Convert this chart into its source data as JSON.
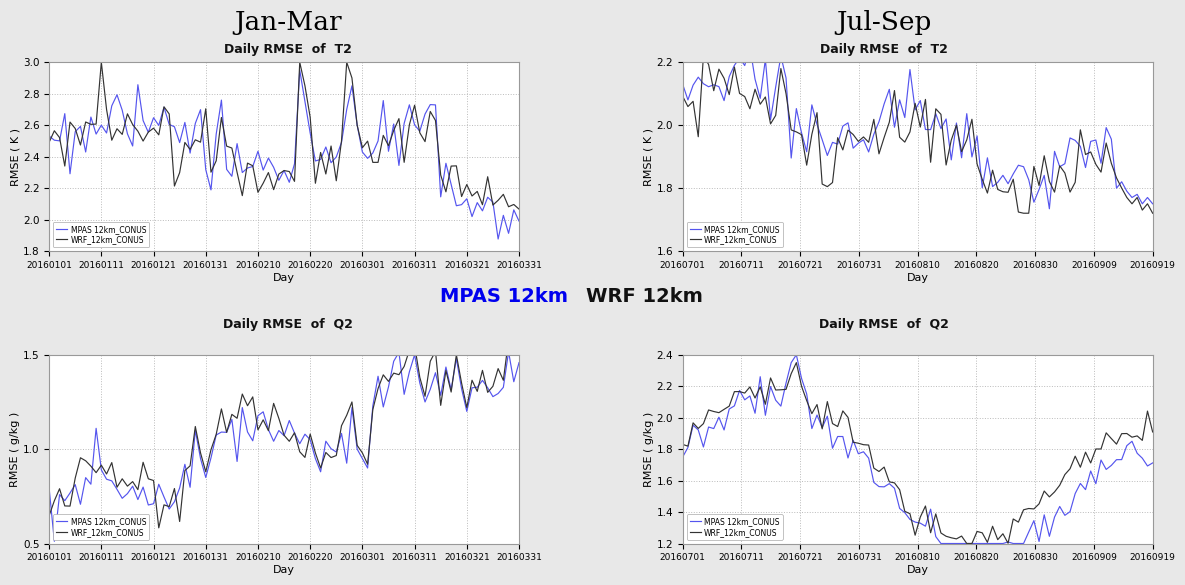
{
  "jan_mar_xticks": [
    "20160101",
    "20160111",
    "20160121",
    "20160131",
    "20160210",
    "20160220",
    "20160301",
    "20160311",
    "20160321",
    "20160331"
  ],
  "jul_sep_xticks": [
    "20160701",
    "20160711",
    "20160721",
    "20160731",
    "20160810",
    "20160820",
    "20160830",
    "20160909",
    "20160919"
  ],
  "mpas_color": "#5555ee",
  "wrf_color": "#333333",
  "bg_color": "#e8e8e8",
  "plot_bg": "#ffffff",
  "grid_color": "#bbbbbb",
  "title_janmar": "Jan-Mar",
  "title_julsep": "Jul-Sep",
  "subtitle_t2": "Daily RMSE  of  T2",
  "subtitle_q2": "Daily RMSE  of  Q2",
  "ylabel_t2": "RMSE ( K )",
  "ylabel_q2": "RMSE ( g/kg )",
  "xlabel": "Day",
  "legend_mpas": "MPAS 12km_CONUS",
  "legend_wrf": "WRF_12km_CONUS",
  "center_label_mpas": "MPAS 12km",
  "center_label_wrf": "  WRF 12km",
  "ylim_t2_janmar": [
    1.8,
    3.0
  ],
  "ylim_t2_julsep": [
    1.6,
    2.2
  ],
  "ylim_q2_janmar": [
    0.5,
    1.5
  ],
  "ylim_q2_julsep": [
    1.2,
    2.4
  ],
  "yticks_t2_janmar": [
    1.8,
    2.0,
    2.2,
    2.4,
    2.6,
    2.8,
    3.0
  ],
  "yticks_t2_julsep": [
    1.6,
    1.8,
    2.0,
    2.2
  ],
  "yticks_q2_janmar": [
    0.5,
    1.0,
    1.5
  ],
  "yticks_q2_julsep": [
    1.2,
    1.4,
    1.6,
    1.8,
    2.0,
    2.2,
    2.4
  ]
}
